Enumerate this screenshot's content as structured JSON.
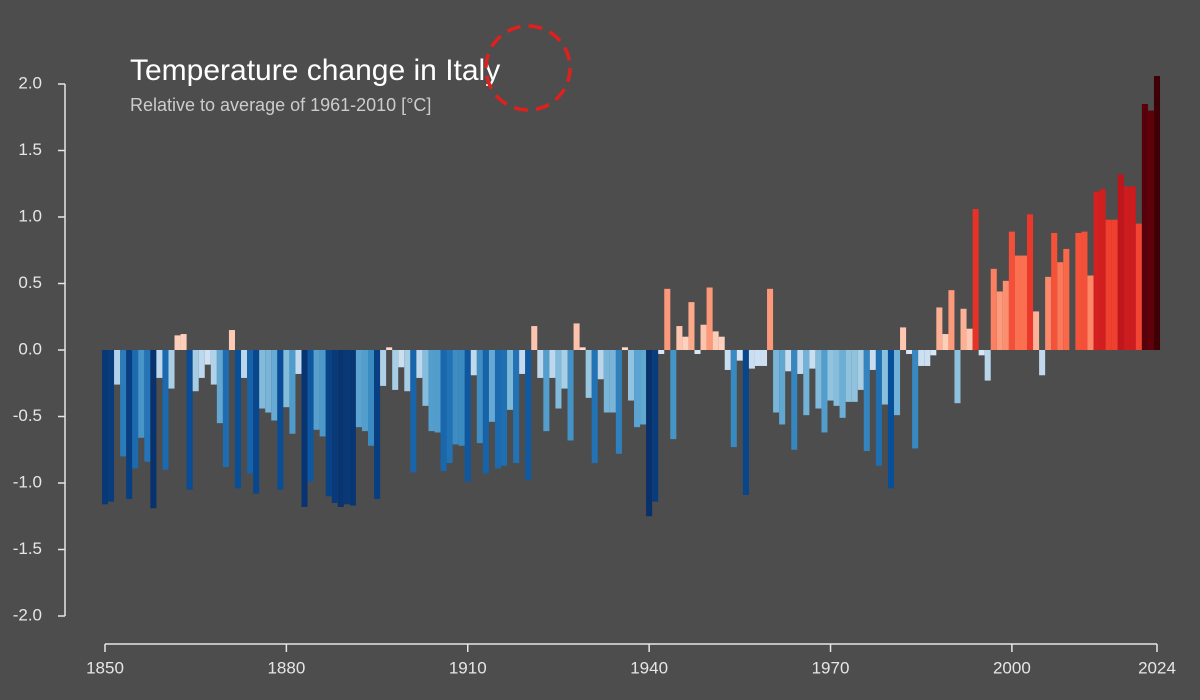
{
  "chart_data": {
    "type": "bar",
    "title": "Temperature change in Italy",
    "subtitle": "Relative to average of 1961-2010  [°C]",
    "x": [
      1850,
      1851,
      1852,
      1853,
      1854,
      1855,
      1856,
      1857,
      1858,
      1859,
      1860,
      1861,
      1862,
      1863,
      1864,
      1865,
      1866,
      1867,
      1868,
      1869,
      1870,
      1871,
      1872,
      1873,
      1874,
      1875,
      1876,
      1877,
      1878,
      1879,
      1880,
      1881,
      1882,
      1883,
      1884,
      1885,
      1886,
      1887,
      1888,
      1889,
      1890,
      1891,
      1892,
      1893,
      1894,
      1895,
      1896,
      1897,
      1898,
      1899,
      1900,
      1901,
      1902,
      1903,
      1904,
      1905,
      1906,
      1907,
      1908,
      1909,
      1910,
      1911,
      1912,
      1913,
      1914,
      1915,
      1916,
      1917,
      1918,
      1919,
      1920,
      1921,
      1922,
      1923,
      1924,
      1925,
      1926,
      1927,
      1928,
      1929,
      1930,
      1931,
      1932,
      1933,
      1934,
      1935,
      1936,
      1937,
      1938,
      1939,
      1940,
      1941,
      1942,
      1943,
      1944,
      1945,
      1946,
      1947,
      1948,
      1949,
      1950,
      1951,
      1952,
      1953,
      1954,
      1955,
      1956,
      1957,
      1958,
      1959,
      1960,
      1961,
      1962,
      1963,
      1964,
      1965,
      1966,
      1967,
      1968,
      1969,
      1970,
      1971,
      1972,
      1973,
      1974,
      1975,
      1976,
      1977,
      1978,
      1979,
      1980,
      1981,
      1982,
      1983,
      1984,
      1985,
      1986,
      1987,
      1988,
      1989,
      1990,
      1991,
      1992,
      1993,
      1994,
      1995,
      1996,
      1997,
      1998,
      1999,
      2000,
      2001,
      2002,
      2003,
      2004,
      2005,
      2006,
      2007,
      2008,
      2009,
      2010,
      2011,
      2012,
      2013,
      2014,
      2015,
      2016,
      2017,
      2018,
      2019,
      2020,
      2021,
      2022,
      2023,
      2024
    ],
    "values": [
      -1.16,
      -1.14,
      -0.26,
      -0.8,
      -1.12,
      -0.89,
      -0.66,
      -0.84,
      -1.19,
      -0.21,
      -0.9,
      -0.29,
      0.11,
      0.12,
      -1.05,
      -0.31,
      -0.21,
      -0.11,
      -0.26,
      -0.55,
      -0.88,
      0.15,
      -1.04,
      -0.21,
      -0.93,
      -1.08,
      -0.44,
      -0.47,
      -0.53,
      -1.05,
      -0.43,
      -0.63,
      -0.18,
      -1.18,
      -0.99,
      -0.6,
      -0.65,
      -1.1,
      -1.15,
      -1.18,
      -1.16,
      -1.17,
      -0.58,
      -0.61,
      -0.72,
      -1.12,
      -0.27,
      0.02,
      -0.3,
      -0.13,
      -0.31,
      -0.92,
      -0.21,
      -0.42,
      -0.61,
      -0.62,
      -0.91,
      -0.85,
      -0.71,
      -0.72,
      -0.99,
      -0.19,
      -0.7,
      -0.93,
      -0.54,
      -0.89,
      -0.87,
      -0.45,
      -0.85,
      -0.18,
      -0.98,
      0.18,
      -0.21,
      -0.61,
      -0.21,
      -0.44,
      -0.29,
      -0.68,
      0.2,
      0.02,
      -0.36,
      -0.85,
      -0.22,
      -0.47,
      -0.47,
      -0.78,
      0.02,
      -0.38,
      -0.58,
      -0.56,
      -1.25,
      -1.14,
      -0.03,
      0.46,
      -0.67,
      0.18,
      0.1,
      0.36,
      -0.03,
      0.19,
      0.47,
      0.14,
      0.1,
      -0.15,
      -0.73,
      -0.08,
      -1.09,
      -0.14,
      -0.12,
      -0.12,
      0.46,
      -0.47,
      -0.56,
      -0.16,
      -0.75,
      -0.18,
      -0.49,
      -0.14,
      -0.44,
      -0.62,
      -0.38,
      -0.42,
      -0.51,
      -0.39,
      -0.39,
      -0.3,
      -0.76,
      -0.15,
      -0.87,
      -0.41,
      -1.04,
      -0.49,
      0.17,
      -0.03,
      -0.74,
      -0.12,
      -0.12,
      -0.04,
      0.32,
      0.12,
      0.45,
      -0.4,
      0.31,
      0.16,
      1.06,
      -0.04,
      -0.23,
      0.61,
      0.44,
      0.52,
      0.89,
      0.71,
      0.71,
      1.02,
      0.29,
      -0.19,
      0.55,
      0.88,
      0.66,
      0.76,
      0.0,
      0.88,
      0.89,
      0.56,
      1.19,
      1.21,
      0.98,
      0.98,
      1.32,
      1.23,
      1.23,
      0.95,
      1.85,
      1.8,
      2.06
    ],
    "xlim": [
      1850,
      2024
    ],
    "xticks": [
      1850,
      1880,
      1910,
      1940,
      1970,
      2000,
      2024
    ],
    "ylim": [
      -2,
      2
    ],
    "yticks": [
      {
        "value": -2,
        "label": "-2.0"
      },
      {
        "value": -1.5,
        "label": "-1.5"
      },
      {
        "value": -1,
        "label": "-1.0"
      },
      {
        "value": -0.5,
        "label": "-0.5"
      },
      {
        "value": 0,
        "label": "0.0"
      },
      {
        "value": 0.5,
        "label": "0.5"
      },
      {
        "value": 1,
        "label": "1.0"
      },
      {
        "value": 1.5,
        "label": "1.5"
      },
      {
        "value": 2,
        "label": "2.0"
      }
    ],
    "cold_colors": [
      "#08306b",
      "#08519c",
      "#2171b5",
      "#4292c6",
      "#6baed6",
      "#9ecae1",
      "#c6dbef",
      "#deebf7"
    ],
    "warm_colors": [
      "#fee0d2",
      "#fcbba1",
      "#fc9272",
      "#fb6a4a",
      "#ef3b2c",
      "#cb181d",
      "#a50f15",
      "#67000d",
      "#3f0005"
    ],
    "color_limits": [
      -1.2,
      2.0
    ]
  }
}
